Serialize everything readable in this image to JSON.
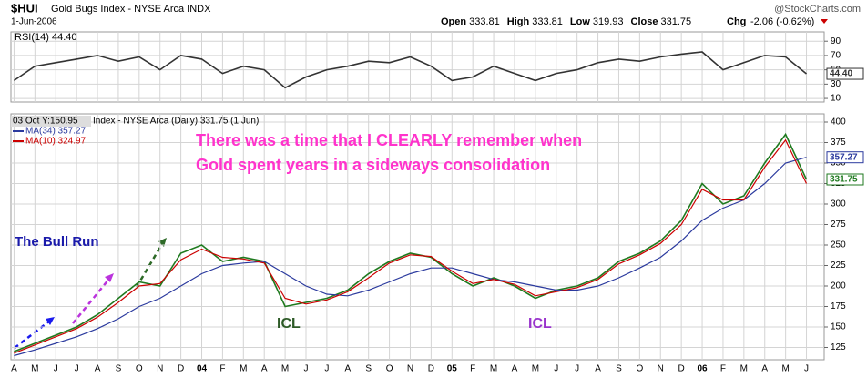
{
  "header": {
    "symbol": "$HUI",
    "name": "Gold Bugs Index - NYSE Arca INDX",
    "date": "1-Jun-2006",
    "source": "@StockCharts.com",
    "quote": [
      {
        "label": "Open",
        "value": 333.81
      },
      {
        "label": "High",
        "value": 333.81
      },
      {
        "label": "Low",
        "value": 319.93
      },
      {
        "label": "Close",
        "value": 331.75
      }
    ],
    "change_label": "Chg",
    "change": "-2.06 (-0.62%)"
  },
  "chart_data": [
    {
      "type": "line",
      "title": "RSI(14) 44.40",
      "ylim": [
        5,
        103
      ],
      "yticks": [
        10,
        30,
        50,
        70,
        90
      ],
      "grid": true,
      "series": [
        {
          "name": "RSI(14)",
          "color": "#333333",
          "last_label": "44.40",
          "values": [
            35,
            55,
            60,
            65,
            70,
            62,
            68,
            50,
            70,
            65,
            45,
            55,
            50,
            25,
            40,
            50,
            55,
            62,
            60,
            68,
            55,
            35,
            40,
            55,
            45,
            35,
            45,
            50,
            60,
            65,
            62,
            68,
            72,
            75,
            50,
            60,
            70,
            68,
            44.4
          ]
        }
      ]
    },
    {
      "type": "line",
      "cursor_label": "03 Oct Y:150.95",
      "title": "Index - NYSE Arca (Daily) 331.75 (1 Jun)",
      "categories": [
        "A",
        "M",
        "J",
        "J",
        "A",
        "S",
        "O",
        "N",
        "D",
        "04",
        "F",
        "M",
        "A",
        "M",
        "J",
        "J",
        "A",
        "S",
        "O",
        "N",
        "D",
        "05",
        "F",
        "M",
        "A",
        "M",
        "J",
        "J",
        "A",
        "S",
        "O",
        "N",
        "D",
        "06",
        "F",
        "M",
        "A",
        "M",
        "J"
      ],
      "ylim": [
        110,
        410
      ],
      "yticks": [
        125,
        150,
        175,
        200,
        225,
        250,
        275,
        300,
        325,
        350,
        375,
        400
      ],
      "grid": true,
      "series": [
        {
          "name": "$HUI",
          "color": "#1f7a1f",
          "last_label": "331.75",
          "values": [
            120,
            130,
            140,
            150,
            165,
            185,
            205,
            200,
            240,
            250,
            230,
            235,
            230,
            175,
            180,
            185,
            195,
            215,
            230,
            240,
            235,
            215,
            200,
            210,
            200,
            185,
            195,
            200,
            210,
            230,
            240,
            255,
            280,
            325,
            300,
            310,
            350,
            385,
            330
          ]
        },
        {
          "name": "MA(34) 357.27",
          "color": "#2b3a9e",
          "last_label": "357.27",
          "values": [
            115,
            122,
            130,
            138,
            148,
            160,
            175,
            185,
            200,
            215,
            225,
            228,
            230,
            215,
            200,
            190,
            188,
            195,
            205,
            215,
            222,
            222,
            215,
            208,
            205,
            200,
            195,
            195,
            200,
            210,
            222,
            235,
            255,
            280,
            295,
            305,
            325,
            350,
            357
          ]
        },
        {
          "name": "MA(10) 324.97",
          "color": "#cc0000",
          "values": [
            118,
            128,
            138,
            148,
            162,
            180,
            200,
            203,
            232,
            245,
            235,
            233,
            228,
            185,
            178,
            183,
            193,
            210,
            228,
            238,
            236,
            218,
            203,
            208,
            202,
            188,
            193,
            198,
            208,
            227,
            238,
            252,
            275,
            318,
            305,
            305,
            345,
            378,
            325
          ]
        }
      ],
      "annotations": [
        {
          "text": "There was a time that I CLEARLY remember when",
          "color": "#ff33cc"
        },
        {
          "text": "Gold spent years in a sideways consolidation",
          "color": "#ff33cc"
        },
        {
          "text": "The Bull Run",
          "color": "#1a1aaa"
        },
        {
          "text": "ICL",
          "color": "#2d5a27"
        },
        {
          "text": "ICL",
          "color": "#9933cc"
        }
      ]
    }
  ]
}
